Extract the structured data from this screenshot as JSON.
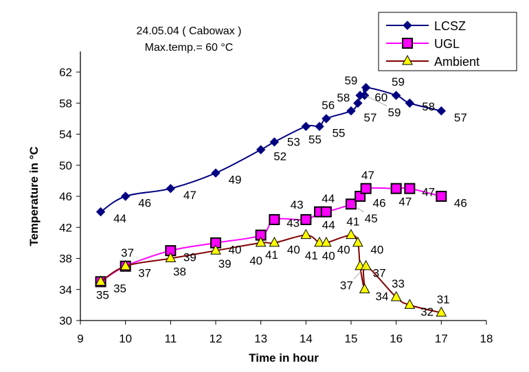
{
  "chart_data": {
    "type": "line",
    "title": [
      "24.05.04 ( Cabowax )",
      "Max.temp.= 60 °C"
    ],
    "xlabel": "Time in hour",
    "ylabel": "Temperature in °C",
    "xlim": [
      9,
      18
    ],
    "ylim": [
      30,
      62
    ],
    "xticks": [
      9,
      10,
      11,
      12,
      13,
      14,
      15,
      16,
      17,
      18
    ],
    "yticks": [
      30,
      34,
      38,
      42,
      46,
      50,
      54,
      58,
      62
    ],
    "grid": false,
    "legend_position": "top-right",
    "series": [
      {
        "name": "LCSZ",
        "color": "#000080",
        "marker": "diamond",
        "x": [
          9.45,
          10,
          11,
          12,
          13,
          13.3,
          14,
          14.3,
          14.45,
          15,
          15.15,
          15.2,
          15.3,
          15.33,
          16,
          16.3,
          17
        ],
        "y": [
          44,
          46,
          47,
          49,
          52,
          53,
          55,
          55,
          56,
          57,
          58,
          59,
          59,
          60,
          59,
          58,
          57
        ]
      },
      {
        "name": "UGL",
        "color": "#ff00ff",
        "marker": "square",
        "x": [
          9.45,
          10,
          11,
          12,
          13,
          13.3,
          14,
          14.3,
          14.45,
          15,
          15.2,
          15.33,
          16,
          16.3,
          17
        ],
        "y": [
          35,
          37,
          39,
          40,
          41,
          43,
          43,
          44,
          44,
          45,
          46,
          47,
          47,
          47,
          46
        ]
      },
      {
        "name": "Ambient",
        "color": "#800000",
        "marker": "triangle",
        "marker_fill": "#ffff00",
        "x": [
          9.45,
          10,
          11,
          12,
          13,
          13.3,
          14,
          14.3,
          14.45,
          15,
          15.15,
          15.2,
          15.3,
          15.33,
          16,
          16.3,
          17
        ],
        "y": [
          35,
          37,
          38,
          39,
          40,
          40,
          41,
          40,
          40,
          41,
          40,
          37,
          34,
          37,
          33,
          32,
          31
        ]
      }
    ]
  }
}
